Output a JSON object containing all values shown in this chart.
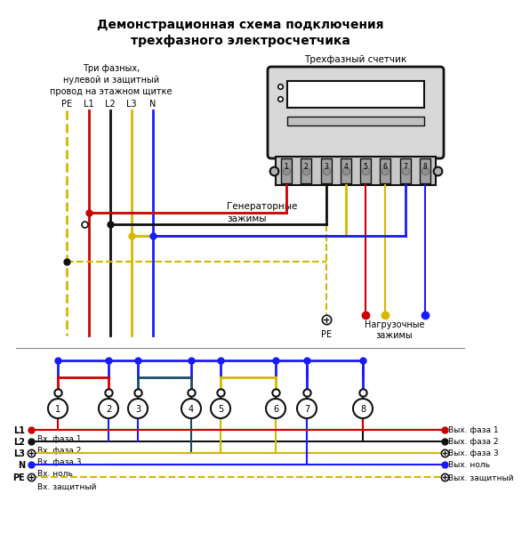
{
  "title_line1": "Демонстрационная схема подключения",
  "title_line2": "трехфазного электросчетчика",
  "label_panel": "Три фазных,\nнулевой и защитный\nпровод на этажном щитке",
  "label_meter": "Трехфазный счетчик",
  "label_gen": "Генераторные",
  "label_clamp": "зажимы",
  "label_pe": "PE",
  "label_load": "Нагрузочные\nзажимы",
  "wire_labels": [
    "PE",
    "L1",
    "L2",
    "L3",
    "N"
  ],
  "bottom_L_labels": [
    "L1",
    "L2",
    "L3",
    "N",
    "PE"
  ],
  "bottom_L_sub": [
    "Вх. фаза 1",
    "Вх. фаза 2",
    "Вх. фаза 3",
    "Вх. ноль",
    "Вх. защитный"
  ],
  "bottom_R_labels": [
    "Вых. фаза 1",
    "Вых. фаза 2",
    "Вых. фаза 3",
    "Вых. ноль",
    "Вых. защитный"
  ],
  "c_red": "#cc0000",
  "c_blue": "#1a1aff",
  "c_yellow": "#d4b800",
  "c_black": "#111111",
  "c_darkblue": "#000080",
  "c_bg": "#f2f2f2"
}
